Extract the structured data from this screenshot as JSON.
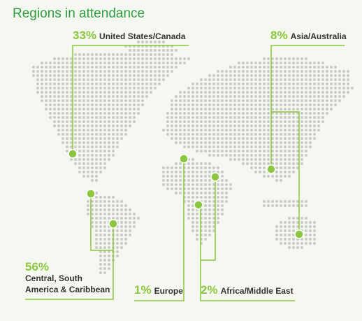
{
  "title": "Regions in attendance",
  "chart_data": {
    "type": "map",
    "categories": [
      "United States/Canada",
      "Asia/Australia",
      "Central, South\nAmerica & Caribbean",
      "Europe",
      "Africa/Middle East"
    ],
    "values": [
      33,
      8,
      56,
      1,
      2
    ],
    "value_labels": [
      "33%",
      "8%",
      "56%",
      "1%",
      "2%"
    ],
    "color": "#8dc63f"
  }
}
